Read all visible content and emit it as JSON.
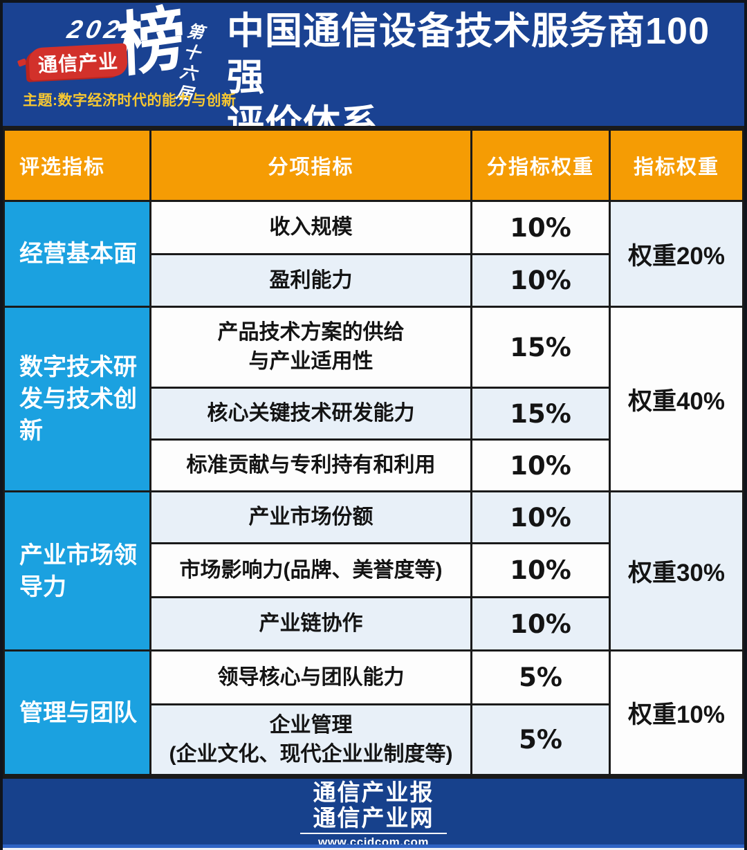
{
  "branding": {
    "year": "2022",
    "ribbon_text": "通信产业",
    "rank_char": "榜",
    "edition": "第十六届",
    "theme": "主题:数字经济时代的能力与创新"
  },
  "title": {
    "line1": "中国通信设备技术服务商100强",
    "line2": "评价体系"
  },
  "table": {
    "headers": [
      "评选指标",
      "分项指标",
      "分指标权重",
      "指标权重"
    ],
    "groups": [
      {
        "category": "经营基本面",
        "weight": "权重20%",
        "rows": [
          {
            "name": "收入规模",
            "sub_weight": "10%"
          },
          {
            "name": "盈利能力",
            "sub_weight": "10%"
          }
        ]
      },
      {
        "category": "数字技术研发与技术创新",
        "weight": "权重40%",
        "rows": [
          {
            "name": "产品技术方案的供给\n与产业适用性",
            "sub_weight": "15%"
          },
          {
            "name": "核心关键技术研发能力",
            "sub_weight": "15%"
          },
          {
            "name": "标准贡献与专利持有和利用",
            "sub_weight": "10%"
          }
        ]
      },
      {
        "category": "产业市场领导力",
        "weight": "权重30%",
        "rows": [
          {
            "name": "产业市场份额",
            "sub_weight": "10%"
          },
          {
            "name": "市场影响力(品牌、美誉度等)",
            "sub_weight": "10%"
          },
          {
            "name": "产业链协作",
            "sub_weight": "10%"
          }
        ]
      },
      {
        "category": "管理与团队",
        "weight": "权重10%",
        "rows": [
          {
            "name": "领导核心与团队能力",
            "sub_weight": "5%"
          },
          {
            "name": "企业管理\n(企业文化、现代企业业制度等)",
            "sub_weight": "5%"
          }
        ]
      }
    ]
  },
  "footer": {
    "line1": "通信产业报",
    "line2": "通信产业网",
    "url": "www.ccidcom.com"
  },
  "colors": {
    "background_navy": "#1A4292",
    "header_orange": "#F59C04",
    "category_cyan": "#1BA1E0",
    "row_light": "#E8F0F8",
    "row_white": "#FDFDFD",
    "grid_border": "#1A1A1A",
    "ribbon_red": "#D2312B",
    "theme_yellow": "#F8C831"
  }
}
